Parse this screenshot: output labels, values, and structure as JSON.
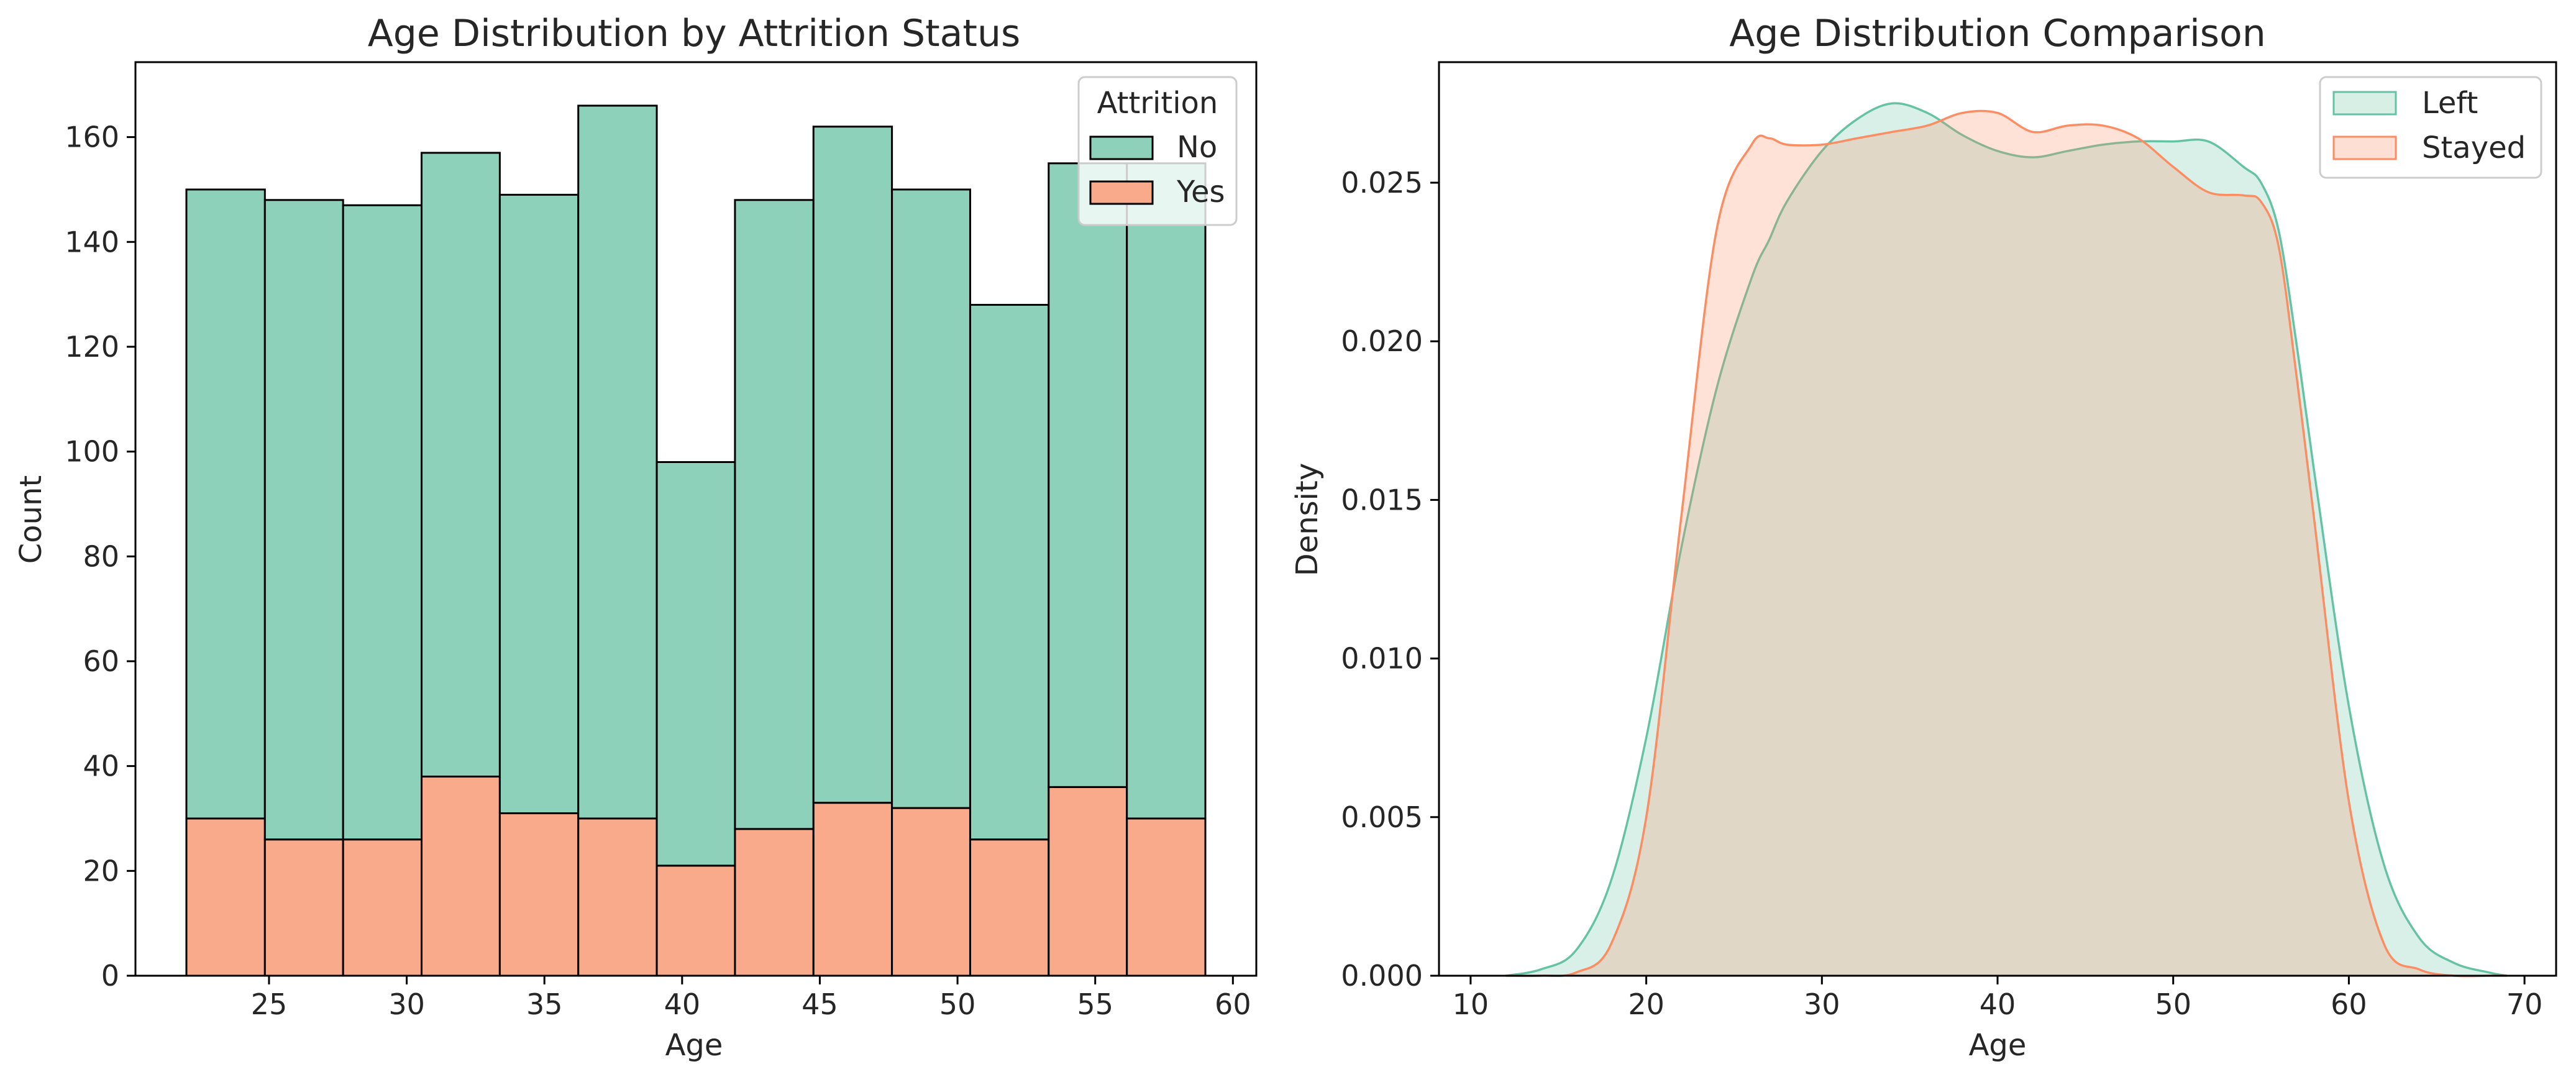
{
  "chart_data": [
    {
      "type": "bar",
      "subtype": "stacked-histogram",
      "title": "Age Distribution by Attrition Status",
      "xlabel": "Age",
      "ylabel": "Count",
      "xlim": [
        20.15,
        60.85
      ],
      "ylim": [
        0,
        174.3
      ],
      "xticks": [
        25,
        30,
        35,
        40,
        45,
        50,
        55,
        60
      ],
      "yticks": [
        0,
        20,
        40,
        60,
        80,
        100,
        120,
        140,
        160
      ],
      "bin_edges": [
        22,
        24.85,
        27.69,
        30.54,
        33.38,
        36.23,
        39.08,
        41.92,
        44.77,
        47.62,
        50.46,
        53.31,
        56.15,
        59
      ],
      "legend": {
        "title": "Attrition",
        "placement": "top-right"
      },
      "series": [
        {
          "name": "No",
          "color": "#8dd1bb",
          "values": [
            120,
            122,
            121,
            119,
            118,
            136,
            77,
            120,
            129,
            118,
            102,
            119,
            125
          ]
        },
        {
          "name": "Yes",
          "color": "#f9aa8a",
          "values": [
            30,
            26,
            26,
            38,
            31,
            30,
            21,
            28,
            33,
            32,
            26,
            36,
            30
          ]
        }
      ],
      "grid": false
    },
    {
      "type": "area",
      "subtype": "kde",
      "title": "Age Distribution Comparison",
      "xlabel": "Age",
      "ylabel": "Density",
      "xlim": [
        8.2,
        71.8
      ],
      "ylim": [
        0,
        0.0288
      ],
      "xticks": [
        10,
        20,
        30,
        40,
        50,
        60,
        70
      ],
      "yticks": [
        "0.000",
        "0.005",
        "0.010",
        "0.015",
        "0.020",
        "0.025"
      ],
      "legend": {
        "placement": "top-right"
      },
      "x": [
        12,
        14,
        16,
        18,
        20,
        22,
        24,
        26,
        27,
        28,
        30,
        32,
        34,
        36,
        38,
        40,
        42,
        44,
        46,
        48,
        50,
        52,
        54,
        55,
        56,
        57,
        58,
        60,
        62,
        64,
        66,
        68,
        69
      ],
      "series": [
        {
          "name": "Left",
          "color": "#66c2a5",
          "values": [
            0.0,
            0.0002,
            0.0008,
            0.003,
            0.0075,
            0.0135,
            0.0185,
            0.022,
            0.0232,
            0.0244,
            0.026,
            0.027,
            0.0275,
            0.0272,
            0.0265,
            0.026,
            0.0258,
            0.026,
            0.0262,
            0.0263,
            0.0263,
            0.0263,
            0.0255,
            0.025,
            0.0235,
            0.02,
            0.016,
            0.0085,
            0.0035,
            0.0012,
            0.0004,
            0.0001,
            0.0
          ]
        },
        {
          "name": "Stayed",
          "color": "#fc8d62",
          "values": [
            0.0,
            0.0,
            0.0001,
            0.001,
            0.005,
            0.0145,
            0.0235,
            0.0262,
            0.0264,
            0.0262,
            0.0262,
            0.0264,
            0.0266,
            0.0268,
            0.0272,
            0.0272,
            0.0266,
            0.0268,
            0.0268,
            0.0264,
            0.0255,
            0.0247,
            0.0246,
            0.0244,
            0.023,
            0.019,
            0.0145,
            0.0055,
            0.001,
            0.0002,
            0.0,
            0.0,
            0.0
          ]
        }
      ],
      "grid": false
    }
  ]
}
